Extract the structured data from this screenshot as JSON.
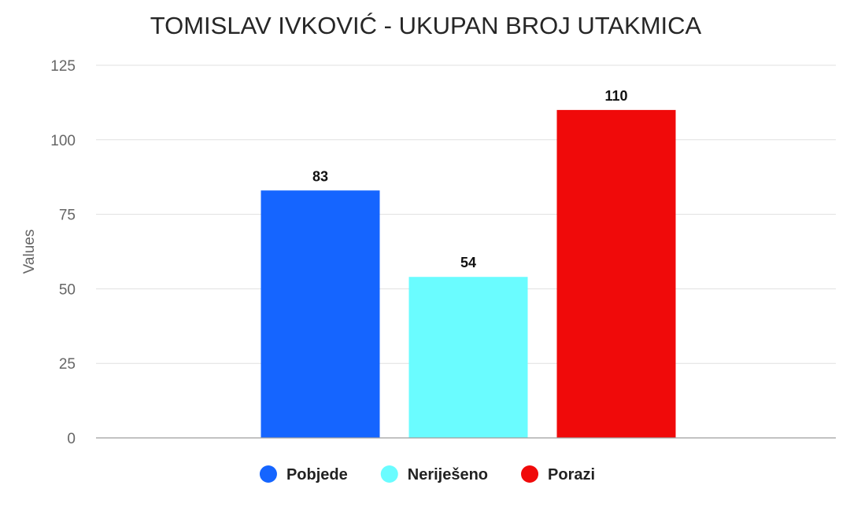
{
  "chart_data": {
    "type": "bar",
    "title": "TOMISLAV IVKOVIĆ - UKUPAN BROJ UTAKMICA",
    "xlabel": "",
    "ylabel": "Values",
    "ylim": [
      0,
      125
    ],
    "yticks": [
      "0",
      "25",
      "50",
      "75",
      "100",
      "125"
    ],
    "grid": true,
    "legend_position": "bottom",
    "series": [
      {
        "name": "Pobjede",
        "value": 83,
        "label": "83",
        "color": "#1565ff"
      },
      {
        "name": "Neriješeno",
        "value": 54,
        "label": "54",
        "color": "#6afcff"
      },
      {
        "name": "Porazi",
        "value": 110,
        "label": "110",
        "color": "#f00a0a"
      }
    ]
  }
}
